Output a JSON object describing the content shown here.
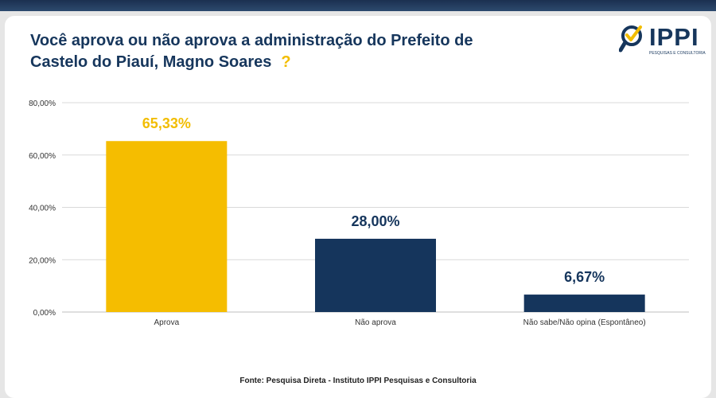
{
  "header": {
    "title_line1": "Você aprova ou não aprova a administração do Prefeito de",
    "title_line2": "Castelo do Piauí, Magno Soares",
    "title_mark": "?"
  },
  "logo": {
    "text": "IPPI",
    "tagline": "PESQUISAS E CONSULTORIA",
    "icon": "magnifier-check-icon"
  },
  "chart_data": {
    "type": "bar",
    "title": "",
    "xlabel": "",
    "ylabel": "",
    "categories": [
      "Aprova",
      "Não aprova",
      "Não sabe/Não opina (Espontâneo)"
    ],
    "values": [
      65.33,
      28.0,
      6.67
    ],
    "value_labels": [
      "65,33%",
      "28,00%",
      "6,67%"
    ],
    "ylim": [
      0,
      80
    ],
    "yticks": [
      0,
      20,
      40,
      60,
      80
    ],
    "ytick_labels": [
      "0,00%",
      "20,00%",
      "40,00%",
      "60,00%",
      "80,00%"
    ],
    "grid": true,
    "legend": "none",
    "colors": [
      "#f5bd00",
      "#15355c",
      "#15355c"
    ]
  },
  "footer": {
    "source": "Fonte: Pesquisa Direta - Instituto IPPI Pesquisas e Consultoria"
  },
  "colors": {
    "title": "#16365c",
    "accent": "#f2bd00",
    "navy": "#15355c",
    "gridline": "#d9d9d9"
  }
}
